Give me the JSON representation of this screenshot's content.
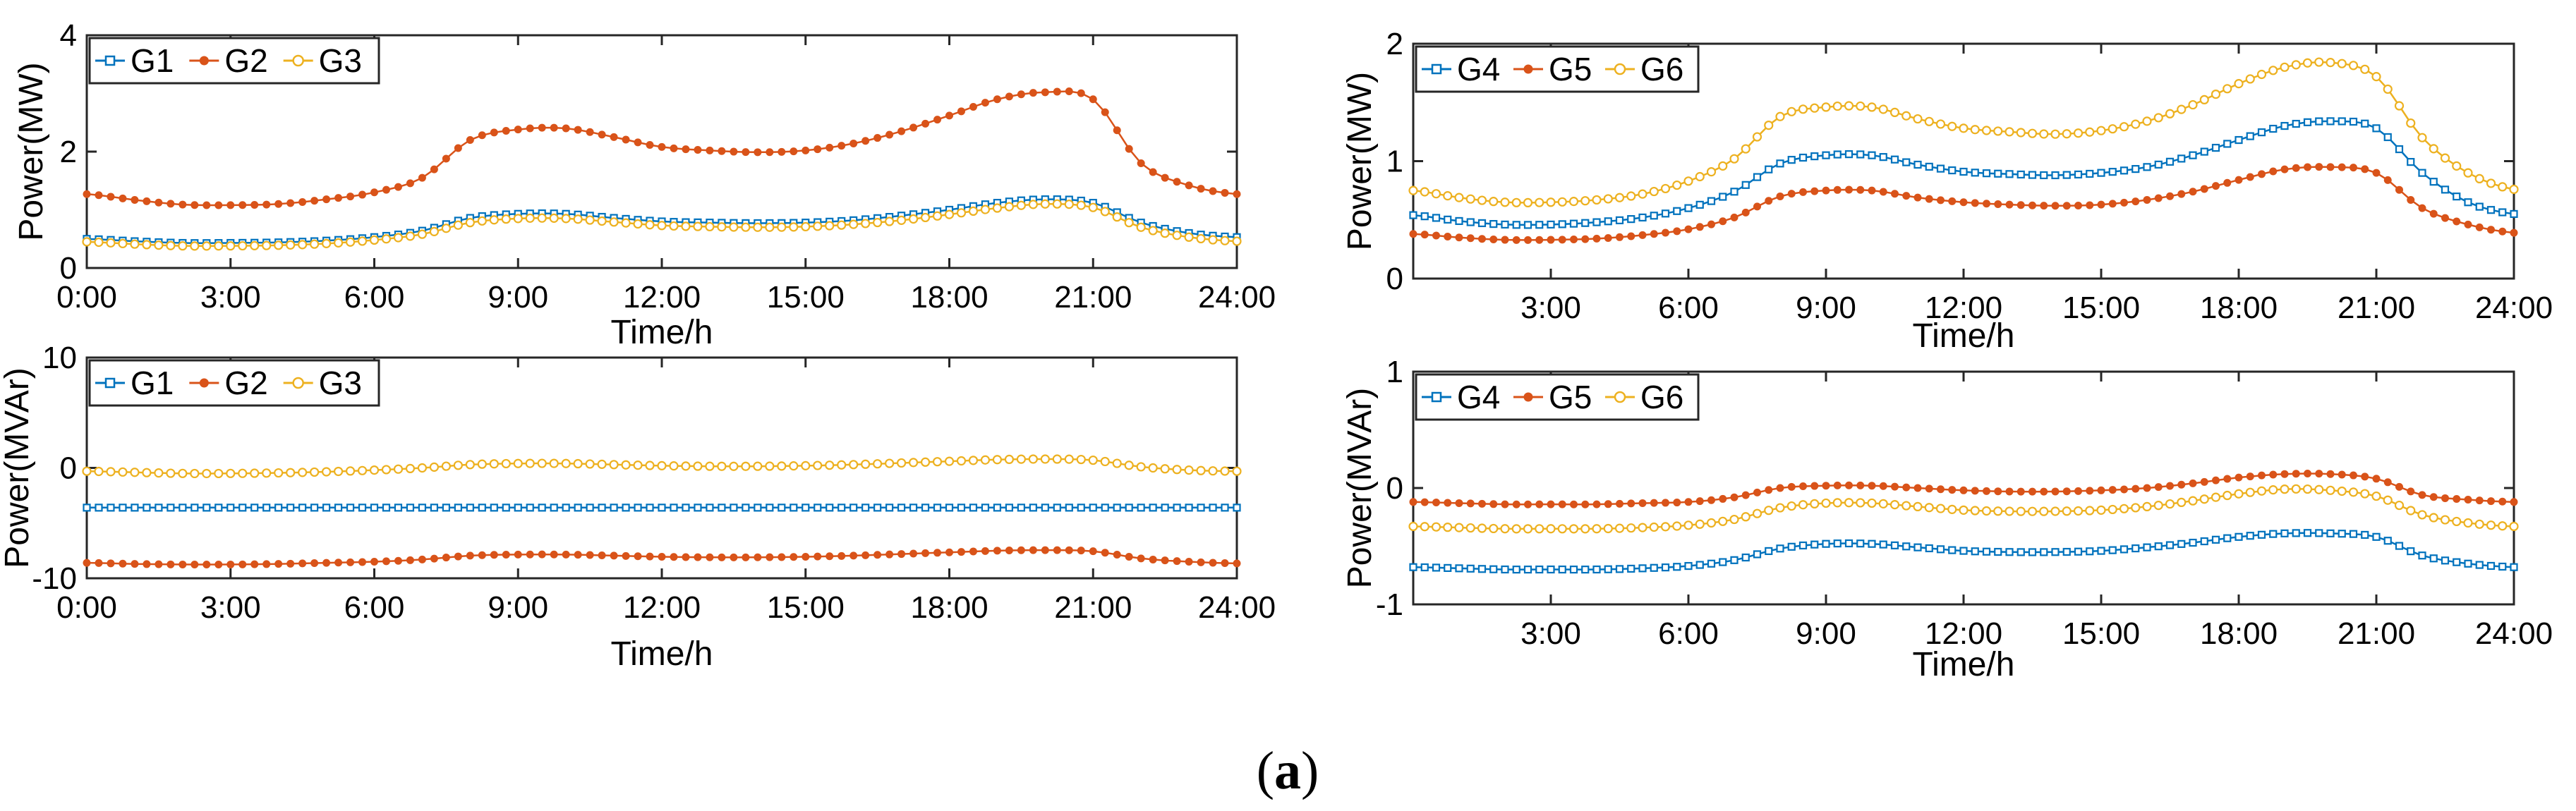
{
  "figure": {
    "caption_open": "(",
    "caption_letter": "a",
    "caption_close": ")"
  },
  "colors": {
    "blue": "#0072BD",
    "orange": "#D95319",
    "yellow": "#EDB120"
  },
  "chart_data": [
    {
      "id": "g123-active",
      "type": "line",
      "title": "",
      "xlabel": "Time/h",
      "ylabel": "Power(MW)",
      "xlim": [
        0,
        24
      ],
      "ylim": [
        0,
        4
      ],
      "xticks": [
        0,
        3,
        6,
        9,
        12,
        15,
        18,
        21,
        24
      ],
      "xtick_labels": [
        "0:00",
        "3:00",
        "6:00",
        "9:00",
        "12:00",
        "15:00",
        "18:00",
        "21:00",
        "24:00"
      ],
      "yticks": [
        0,
        2,
        4
      ],
      "ytick_labels": [
        "0",
        "2",
        "4"
      ],
      "legend": "top-left",
      "grid": false,
      "x": [
        0,
        1,
        2,
        3,
        4,
        5,
        6,
        7,
        8,
        9,
        10,
        11,
        12,
        13,
        14,
        15,
        16,
        17,
        18,
        19,
        20,
        21,
        22,
        23,
        24
      ],
      "series": [
        {
          "name": "G1",
          "color": "blue",
          "marker": "square",
          "values": [
            0.5,
            0.46,
            0.43,
            0.43,
            0.44,
            0.47,
            0.53,
            0.64,
            0.86,
            0.93,
            0.93,
            0.86,
            0.8,
            0.78,
            0.77,
            0.78,
            0.82,
            0.9,
            1.0,
            1.12,
            1.18,
            1.12,
            0.78,
            0.6,
            0.53
          ]
        },
        {
          "name": "G2",
          "color": "orange",
          "marker": "dot",
          "values": [
            1.27,
            1.17,
            1.09,
            1.08,
            1.1,
            1.18,
            1.3,
            1.55,
            2.2,
            2.38,
            2.4,
            2.25,
            2.08,
            2.02,
            1.99,
            2.02,
            2.14,
            2.35,
            2.62,
            2.9,
            3.02,
            2.9,
            1.8,
            1.42,
            1.27
          ]
        },
        {
          "name": "G3",
          "color": "yellow",
          "marker": "circle",
          "values": [
            0.45,
            0.41,
            0.38,
            0.38,
            0.39,
            0.42,
            0.48,
            0.58,
            0.78,
            0.85,
            0.85,
            0.79,
            0.73,
            0.71,
            0.7,
            0.71,
            0.75,
            0.82,
            0.92,
            1.03,
            1.1,
            1.04,
            0.7,
            0.53,
            0.46
          ]
        }
      ]
    },
    {
      "id": "g123-reactive",
      "type": "line",
      "title": "",
      "xlabel": "Time/h",
      "ylabel": "Power(MVAr)",
      "xlim": [
        0,
        24
      ],
      "ylim": [
        -10,
        10
      ],
      "xticks": [
        0,
        3,
        6,
        9,
        12,
        15,
        18,
        21,
        24
      ],
      "xtick_labels": [
        "0:00",
        "3:00",
        "6:00",
        "9:00",
        "12:00",
        "15:00",
        "18:00",
        "21:00",
        "24:00"
      ],
      "yticks": [
        -10,
        0,
        10
      ],
      "ytick_labels": [
        "-10",
        "0",
        "10"
      ],
      "legend": "top-left",
      "grid": false,
      "x": [
        0,
        1,
        2,
        3,
        4,
        5,
        6,
        7,
        8,
        9,
        10,
        11,
        12,
        13,
        14,
        15,
        16,
        17,
        18,
        19,
        20,
        21,
        22,
        23,
        24
      ],
      "series": [
        {
          "name": "G1",
          "color": "blue",
          "marker": "square",
          "values": [
            -3.6,
            -3.6,
            -3.6,
            -3.6,
            -3.6,
            -3.6,
            -3.6,
            -3.6,
            -3.6,
            -3.6,
            -3.6,
            -3.6,
            -3.6,
            -3.6,
            -3.6,
            -3.6,
            -3.6,
            -3.6,
            -3.6,
            -3.6,
            -3.6,
            -3.6,
            -3.6,
            -3.6,
            -3.6
          ]
        },
        {
          "name": "G2",
          "color": "orange",
          "marker": "dot",
          "values": [
            -8.6,
            -8.7,
            -8.75,
            -8.75,
            -8.7,
            -8.6,
            -8.5,
            -8.3,
            -7.95,
            -7.85,
            -7.85,
            -7.95,
            -8.05,
            -8.1,
            -8.1,
            -8.05,
            -7.95,
            -7.8,
            -7.65,
            -7.5,
            -7.45,
            -7.55,
            -8.2,
            -8.5,
            -8.65
          ]
        },
        {
          "name": "G3",
          "color": "yellow",
          "marker": "circle",
          "values": [
            -0.3,
            -0.4,
            -0.5,
            -0.5,
            -0.45,
            -0.35,
            -0.2,
            0.0,
            0.3,
            0.4,
            0.4,
            0.3,
            0.2,
            0.15,
            0.15,
            0.2,
            0.3,
            0.45,
            0.6,
            0.75,
            0.8,
            0.7,
            0.1,
            -0.2,
            -0.3
          ]
        }
      ]
    },
    {
      "id": "g456-active",
      "type": "line",
      "title": "",
      "xlabel": "Time/h",
      "ylabel": "Power(MW)",
      "xlim": [
        0,
        24
      ],
      "ylim": [
        0,
        2
      ],
      "xticks": [
        3,
        6,
        9,
        12,
        15,
        18,
        21,
        24
      ],
      "xtick_labels": [
        "3:00",
        "6:00",
        "9:00",
        "12:00",
        "15:00",
        "18:00",
        "21:00",
        "24:00"
      ],
      "yticks": [
        0,
        1,
        2
      ],
      "ytick_labels": [
        "0",
        "1",
        "2"
      ],
      "legend": "top-left",
      "grid": false,
      "x": [
        0,
        1,
        2,
        3,
        4,
        5,
        6,
        7,
        8,
        9,
        10,
        11,
        12,
        13,
        14,
        15,
        16,
        17,
        18,
        19,
        20,
        21,
        22,
        23,
        24
      ],
      "series": [
        {
          "name": "G4",
          "color": "blue",
          "marker": "square",
          "values": [
            0.54,
            0.49,
            0.46,
            0.46,
            0.48,
            0.52,
            0.6,
            0.74,
            0.98,
            1.05,
            1.05,
            0.97,
            0.91,
            0.89,
            0.88,
            0.9,
            0.95,
            1.05,
            1.18,
            1.3,
            1.34,
            1.28,
            0.9,
            0.65,
            0.55
          ]
        },
        {
          "name": "G5",
          "color": "orange",
          "marker": "dot",
          "values": [
            0.38,
            0.35,
            0.33,
            0.33,
            0.34,
            0.37,
            0.42,
            0.52,
            0.7,
            0.75,
            0.75,
            0.69,
            0.65,
            0.63,
            0.62,
            0.63,
            0.67,
            0.74,
            0.84,
            0.93,
            0.95,
            0.9,
            0.6,
            0.46,
            0.39
          ]
        },
        {
          "name": "G6",
          "color": "yellow",
          "marker": "circle",
          "values": [
            0.75,
            0.69,
            0.65,
            0.65,
            0.67,
            0.72,
            0.83,
            1.02,
            1.38,
            1.46,
            1.46,
            1.36,
            1.28,
            1.25,
            1.23,
            1.26,
            1.34,
            1.48,
            1.66,
            1.8,
            1.84,
            1.72,
            1.2,
            0.9,
            0.76
          ]
        }
      ]
    },
    {
      "id": "g456-reactive",
      "type": "line",
      "title": "",
      "xlabel": "Time/h",
      "ylabel": "Power(MVAr)",
      "xlim": [
        0,
        24
      ],
      "ylim": [
        -1,
        1
      ],
      "xticks": [
        3,
        6,
        9,
        12,
        15,
        18,
        21,
        24
      ],
      "xtick_labels": [
        "3:00",
        "6:00",
        "9:00",
        "12:00",
        "15:00",
        "18:00",
        "21:00",
        "24:00"
      ],
      "yticks": [
        -1,
        0,
        1
      ],
      "ytick_labels": [
        "-1",
        "0",
        "1"
      ],
      "legend": "top-left",
      "grid": false,
      "x": [
        0,
        1,
        2,
        3,
        4,
        5,
        6,
        7,
        8,
        9,
        10,
        11,
        12,
        13,
        14,
        15,
        16,
        17,
        18,
        19,
        20,
        21,
        22,
        23,
        24
      ],
      "series": [
        {
          "name": "G4",
          "color": "blue",
          "marker": "square",
          "values": [
            -0.68,
            -0.69,
            -0.7,
            -0.7,
            -0.7,
            -0.69,
            -0.67,
            -0.62,
            -0.52,
            -0.48,
            -0.48,
            -0.51,
            -0.54,
            -0.55,
            -0.55,
            -0.54,
            -0.51,
            -0.47,
            -0.42,
            -0.39,
            -0.39,
            -0.42,
            -0.58,
            -0.65,
            -0.68
          ]
        },
        {
          "name": "G5",
          "color": "orange",
          "marker": "dot",
          "values": [
            -0.12,
            -0.13,
            -0.14,
            -0.14,
            -0.14,
            -0.13,
            -0.12,
            -0.08,
            0.0,
            0.02,
            0.02,
            0.0,
            -0.02,
            -0.03,
            -0.03,
            -0.02,
            0.0,
            0.04,
            0.09,
            0.12,
            0.12,
            0.08,
            -0.06,
            -0.1,
            -0.12
          ]
        },
        {
          "name": "G6",
          "color": "yellow",
          "marker": "circle",
          "values": [
            -0.33,
            -0.34,
            -0.35,
            -0.35,
            -0.35,
            -0.34,
            -0.32,
            -0.27,
            -0.17,
            -0.13,
            -0.13,
            -0.16,
            -0.19,
            -0.2,
            -0.2,
            -0.19,
            -0.16,
            -0.11,
            -0.05,
            -0.01,
            -0.02,
            -0.07,
            -0.23,
            -0.3,
            -0.33
          ]
        }
      ]
    }
  ]
}
